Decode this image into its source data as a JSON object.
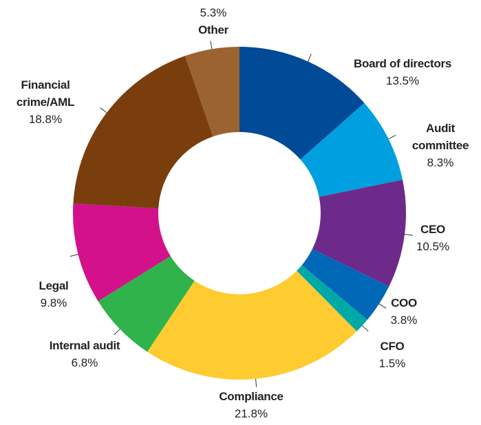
{
  "chart_data": {
    "type": "donut",
    "categories": [
      "Board of directors",
      "Audit committee",
      "CEO",
      "COO",
      "CFO",
      "Compliance",
      "Internal audit",
      "Legal",
      "Financial crime/AML",
      "Other"
    ],
    "values": [
      13.5,
      8.3,
      10.5,
      3.8,
      1.5,
      21.8,
      6.8,
      9.8,
      18.8,
      5.3
    ],
    "value_labels": [
      "13.5%",
      "8.3%",
      "10.5%",
      "3.8%",
      "1.5%",
      "21.8%",
      "6.8%",
      "9.8%",
      "18.8%",
      "5.3%"
    ],
    "colors": [
      "#004a98",
      "#009fdf",
      "#6d2a8a",
      "#0068b7",
      "#00a9a5",
      "#fecb31",
      "#2fb34a",
      "#d2118b",
      "#7a3e0c",
      "#9b6330"
    ]
  }
}
